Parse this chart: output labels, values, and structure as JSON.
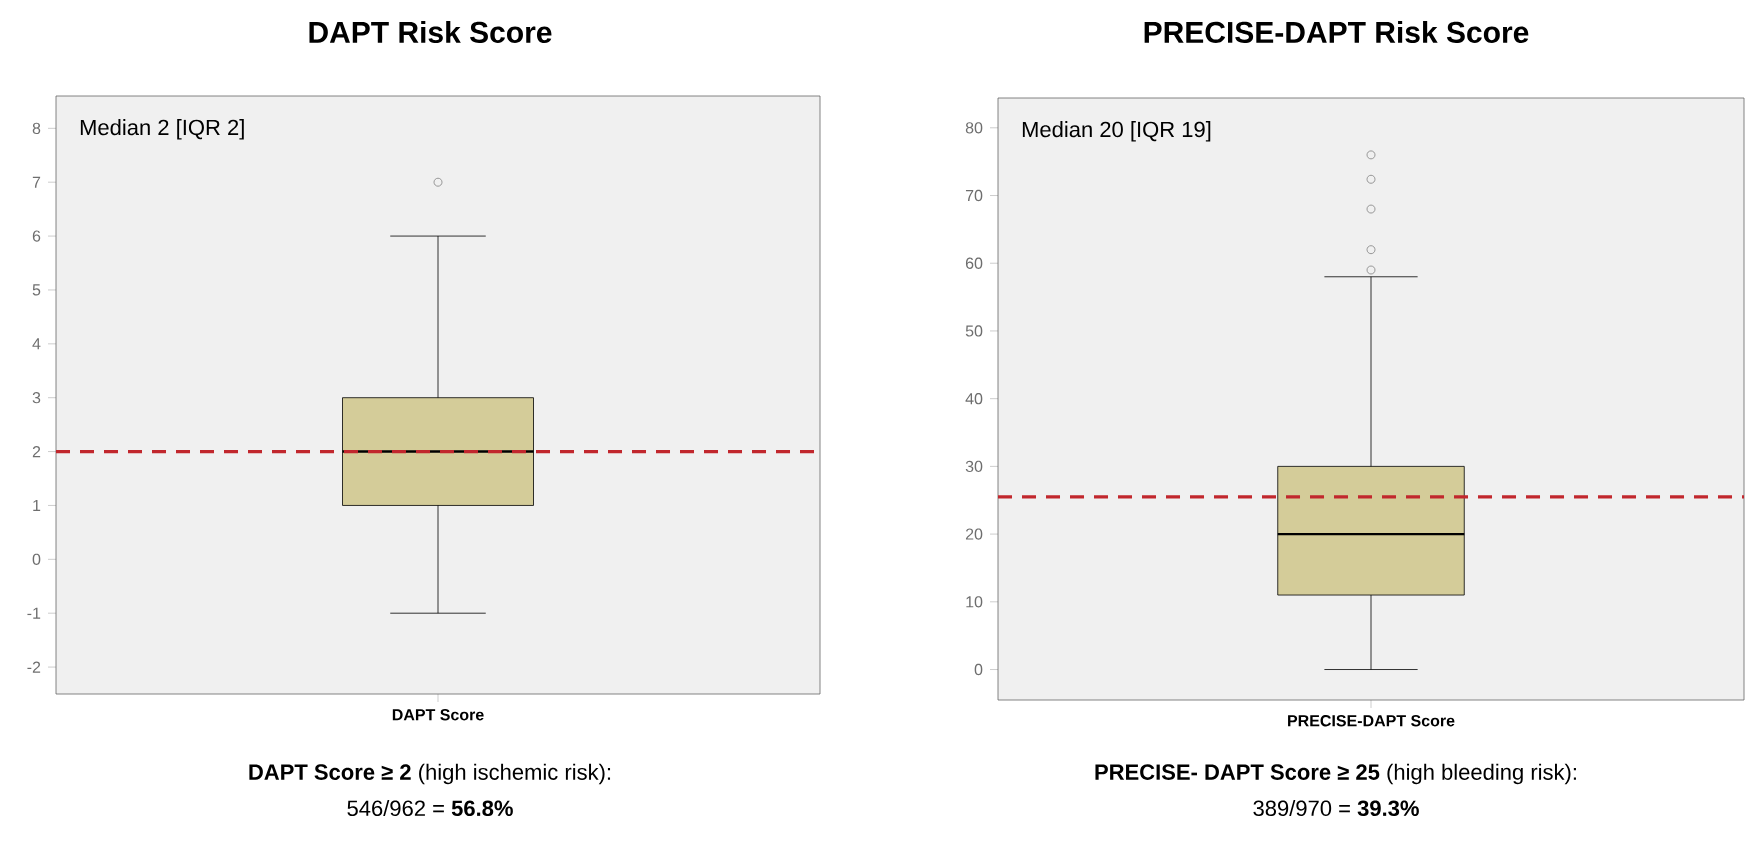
{
  "chart_data": [
    {
      "type": "box",
      "title": "DAPT Risk Score",
      "categories": [
        "DAPT Score"
      ],
      "series": [
        {
          "color": "#d4cc99",
          "boxes": [
            {
              "low": -1,
              "q1": 1,
              "median": 2,
              "q3": 3,
              "high": 6,
              "outliers": [
                7
              ]
            }
          ]
        }
      ],
      "ylim": [
        -2.5,
        8.6
      ],
      "yticks": [
        -2,
        -1,
        0,
        1,
        2,
        3,
        4,
        5,
        6,
        7,
        8
      ],
      "ref_lines": [
        {
          "axis": "y",
          "value": 2,
          "color": "#c1272d",
          "line_style": "dashed"
        }
      ],
      "annotations": [
        "Median 2 [IQR 2]",
        "**DAPT Score ≥ 2** (high ischemic risk):",
        "546/962 = **56.8%**"
      ]
    },
    {
      "type": "box",
      "title": "PRECISE-DAPT Risk Score",
      "categories": [
        "PRECISE-DAPT Score"
      ],
      "series": [
        {
          "color": "#d4cc99",
          "boxes": [
            {
              "low": 0,
              "q1": 11,
              "median": 20,
              "q3": 30,
              "high": 58,
              "outliers": [
                59,
                62,
                68,
                72.4,
                76
              ]
            }
          ]
        }
      ],
      "ylim": [
        -4.5,
        84.4
      ],
      "yticks": [
        0,
        10,
        20,
        30,
        40,
        50,
        60,
        70,
        80
      ],
      "ref_lines": [
        {
          "axis": "y",
          "value": 25.5,
          "color": "#c1272d",
          "line_style": "dashed"
        }
      ],
      "annotations": [
        "Median 20 [IQR 19]",
        "**PRECISE- DAPT Score ≥ 25** (high bleeding risk):",
        "389/970 = **39.3%**"
      ]
    }
  ]
}
